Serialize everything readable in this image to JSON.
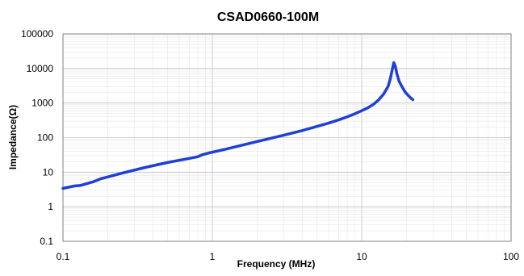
{
  "chart_data": {
    "type": "line",
    "title": "CSAD0660-100M",
    "xlabel": "Frequency  (MHz)",
    "ylabel": "Impedance(Ω)",
    "x_scale": "log",
    "y_scale": "log",
    "xlim": [
      0.1,
      100
    ],
    "ylim": [
      0.1,
      100000
    ],
    "x_ticks": [
      "0.1",
      "1",
      "10",
      "100"
    ],
    "y_ticks": [
      "0.1",
      "1",
      "10",
      "100",
      "1000",
      "10000",
      "100000"
    ],
    "grid": true,
    "legend": "none",
    "series": [
      {
        "color": "#1f3fd6",
        "x": [
          0.1,
          0.12,
          0.13,
          0.16,
          0.18,
          0.25,
          0.35,
          0.5,
          0.7,
          0.8,
          0.85,
          0.95,
          1.2,
          1.5,
          2,
          3,
          4,
          5,
          6,
          7,
          8,
          9,
          10,
          11,
          12,
          13,
          14,
          15,
          15.5,
          16,
          16.4,
          16.8,
          17.2,
          17.8,
          18.5,
          19.5,
          20.5,
          21.5,
          22
        ],
        "y": [
          3.4,
          4.0,
          4.1,
          5.3,
          6.5,
          9.4,
          13.5,
          19,
          25,
          28,
          31.5,
          36,
          45,
          57,
          77,
          117,
          160,
          210,
          262,
          325,
          400,
          490,
          600,
          730,
          920,
          1240,
          1800,
          3000,
          4800,
          9000,
          14800,
          11500,
          7000,
          4300,
          3100,
          2100,
          1650,
          1350,
          1250
        ]
      }
    ]
  }
}
